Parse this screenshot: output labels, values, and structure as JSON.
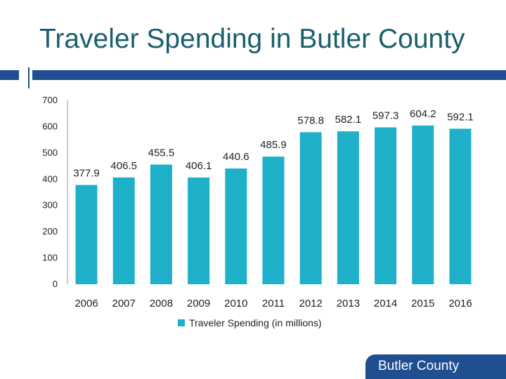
{
  "slide": {
    "title": "Traveler Spending in Butler County"
  },
  "branding": {
    "logo_text": "Butler County"
  },
  "colors": {
    "bar": "#1fb0c9",
    "accent": "#1f4e91",
    "title": "#1b5e6e"
  },
  "chart_data": {
    "type": "bar",
    "categories": [
      "2006",
      "2007",
      "2008",
      "2009",
      "2010",
      "2011",
      "2012",
      "2013",
      "2014",
      "2015",
      "2016"
    ],
    "series": [
      {
        "name": "Traveler Spending (in millions)",
        "values": [
          377.9,
          406.5,
          455.5,
          406.1,
          440.6,
          485.9,
          578.8,
          582.1,
          597.3,
          604.2,
          592.1
        ]
      }
    ],
    "y_ticks": [
      "0",
      "100",
      "200",
      "300",
      "400",
      "500",
      "600",
      "700"
    ],
    "ylim": [
      0,
      700
    ],
    "grid": false,
    "legend_position": "bottom"
  }
}
